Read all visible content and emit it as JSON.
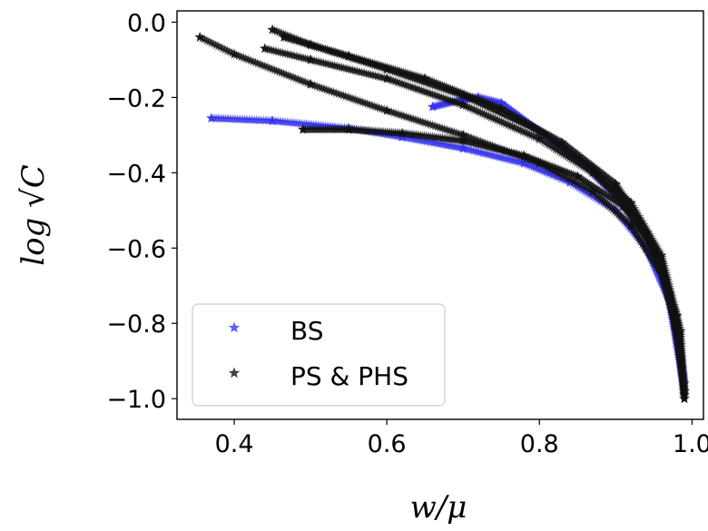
{
  "chart_data": {
    "type": "scatter",
    "xlabel": "w/μ",
    "ylabel": "log √C",
    "xlim": [
      0.325,
      1.015
    ],
    "ylim": [
      -1.055,
      0.03
    ],
    "xticks": [
      0.4,
      0.6,
      0.8,
      1.0
    ],
    "xtick_labels": [
      "0.4",
      "0.6",
      "0.8",
      "1.0"
    ],
    "yticks": [
      0.0,
      -0.2,
      -0.4,
      -0.6,
      -0.8,
      -1.0
    ],
    "ytick_labels": [
      "0.0",
      "−0.2",
      "−0.4",
      "−0.6",
      "−0.8",
      "−1.0"
    ],
    "grid": false,
    "legend_position": "lower-left",
    "marker": "star",
    "series": [
      {
        "name": "BS",
        "color": "#3333ee",
        "curves": [
          {
            "x": [
              0.37,
              0.45,
              0.55,
              0.62,
              0.7,
              0.78,
              0.84,
              0.9,
              0.94,
              0.97,
              0.99
            ],
            "y": [
              -0.255,
              -0.262,
              -0.282,
              -0.305,
              -0.335,
              -0.375,
              -0.425,
              -0.5,
              -0.6,
              -0.74,
              -0.98
            ]
          },
          {
            "x": [
              0.66,
              0.7,
              0.72,
              0.75,
              0.8,
              0.86,
              0.91,
              0.95,
              0.98,
              0.99
            ],
            "y": [
              -0.225,
              -0.205,
              -0.2,
              -0.215,
              -0.29,
              -0.38,
              -0.48,
              -0.6,
              -0.8,
              -0.96
            ]
          }
        ]
      },
      {
        "name": "PS & PHS",
        "color": "#111111",
        "curves": [
          {
            "x": [
              0.355,
              0.4,
              0.5,
              0.6,
              0.7,
              0.8,
              0.87,
              0.92,
              0.96,
              0.98,
              0.99
            ],
            "y": [
              -0.04,
              -0.085,
              -0.165,
              -0.235,
              -0.3,
              -0.375,
              -0.45,
              -0.54,
              -0.67,
              -0.82,
              -1.0
            ]
          },
          {
            "x": [
              0.45,
              0.5,
              0.6,
              0.7,
              0.8,
              0.87,
              0.92,
              0.96,
              0.985,
              0.99
            ],
            "y": [
              -0.02,
              -0.06,
              -0.125,
              -0.195,
              -0.29,
              -0.39,
              -0.48,
              -0.62,
              -0.82,
              -1.0
            ]
          },
          {
            "x": [
              0.44,
              0.5,
              0.6,
              0.7,
              0.8,
              0.87,
              0.92,
              0.96,
              0.98,
              0.99
            ],
            "y": [
              -0.07,
              -0.1,
              -0.15,
              -0.22,
              -0.31,
              -0.4,
              -0.5,
              -0.64,
              -0.81,
              -0.99
            ]
          },
          {
            "x": [
              0.465,
              0.55,
              0.65,
              0.75,
              0.83,
              0.9,
              0.94,
              0.97,
              0.985
            ],
            "y": [
              -0.04,
              -0.09,
              -0.15,
              -0.23,
              -0.32,
              -0.43,
              -0.56,
              -0.72,
              -0.9
            ]
          },
          {
            "x": [
              0.49,
              0.55,
              0.62,
              0.7,
              0.78,
              0.85,
              0.91,
              0.95,
              0.98,
              0.99
            ],
            "y": [
              -0.285,
              -0.285,
              -0.295,
              -0.315,
              -0.355,
              -0.41,
              -0.49,
              -0.6,
              -0.78,
              -0.98
            ]
          }
        ]
      }
    ]
  }
}
